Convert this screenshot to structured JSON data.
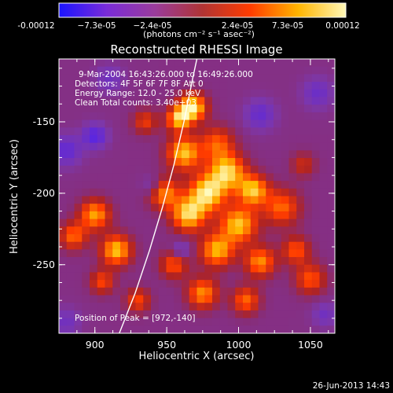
{
  "colorbar": {
    "ticks": [
      "-0.00012",
      "−7.3e-05",
      "−2.4e-05",
      "2.4e-05",
      "7.3e-05",
      "0.00012"
    ],
    "unit_label": "(photons cm⁻² s⁻¹ asec⁻²)",
    "range": [
      -0.00012,
      0.00012
    ],
    "colors": [
      "#1a14ff",
      "#7a2cd8",
      "#9a3c9c",
      "#b03434",
      "#ff3c00",
      "#ffb400",
      "#fff8b8"
    ]
  },
  "chart_data": {
    "type": "heatmap",
    "title": "Reconstructed RHESSI Image",
    "xlabel": "Heliocentric X (arcsec)",
    "ylabel": "Heliocentric Y (arcsec)",
    "xlim": [
      875,
      1067
    ],
    "ylim": [
      -298,
      -106
    ],
    "x_ticks": [
      "900",
      "950",
      "1000",
      "1050"
    ],
    "y_ticks": [
      "-150",
      "-200",
      "-250"
    ],
    "x_tick_values": [
      900,
      950,
      1000,
      1050
    ],
    "y_tick_values": [
      -150,
      -200,
      -250
    ],
    "grid": false,
    "peak": [
      972,
      -140
    ],
    "info_lines": [
      "9-Mar-2004 16:43:26.000 to 16:49:26.000",
      "Detectors: 4F 5F 6F 7F 8F  Att 0",
      "Energy Range: 12.0 - 25.0 keV",
      "Clean    Total counts: 3.40e+03"
    ],
    "peak_label": "Position of Peak = [972,-140]",
    "limb_arc": [
      [
        917,
        -298
      ],
      [
        928,
        -270
      ],
      [
        938,
        -240
      ],
      [
        947,
        -210
      ],
      [
        955,
        -180
      ],
      [
        962,
        -150
      ],
      [
        968,
        -120
      ],
      [
        971,
        -106
      ]
    ],
    "hotspots": [
      {
        "x": 968,
        "y": -140,
        "r": 9,
        "v": 1.0
      },
      {
        "x": 958,
        "y": -148,
        "r": 8,
        "v": 0.8
      },
      {
        "x": 985,
        "y": -165,
        "r": 11,
        "v": 0.55
      },
      {
        "x": 962,
        "y": -172,
        "r": 11,
        "v": 0.85
      },
      {
        "x": 992,
        "y": -185,
        "r": 12,
        "v": 0.9
      },
      {
        "x": 978,
        "y": -200,
        "r": 12,
        "v": 0.95
      },
      {
        "x": 1010,
        "y": -198,
        "r": 10,
        "v": 0.85
      },
      {
        "x": 948,
        "y": -200,
        "r": 10,
        "v": 0.7
      },
      {
        "x": 965,
        "y": -215,
        "r": 11,
        "v": 0.9
      },
      {
        "x": 1000,
        "y": -222,
        "r": 12,
        "v": 0.85
      },
      {
        "x": 1030,
        "y": -210,
        "r": 12,
        "v": 0.6
      },
      {
        "x": 985,
        "y": -240,
        "r": 11,
        "v": 0.8
      },
      {
        "x": 1015,
        "y": -248,
        "r": 10,
        "v": 0.7
      },
      {
        "x": 1040,
        "y": -240,
        "r": 9,
        "v": 0.55
      },
      {
        "x": 955,
        "y": -250,
        "r": 9,
        "v": 0.55
      },
      {
        "x": 900,
        "y": -215,
        "r": 10,
        "v": 0.75
      },
      {
        "x": 885,
        "y": -230,
        "r": 9,
        "v": 0.6
      },
      {
        "x": 915,
        "y": -240,
        "r": 10,
        "v": 0.85
      },
      {
        "x": 905,
        "y": -262,
        "r": 8,
        "v": 0.5
      },
      {
        "x": 930,
        "y": -275,
        "r": 8,
        "v": 0.5
      },
      {
        "x": 975,
        "y": -270,
        "r": 10,
        "v": 0.7
      },
      {
        "x": 1005,
        "y": -275,
        "r": 9,
        "v": 0.6
      },
      {
        "x": 1050,
        "y": -260,
        "r": 10,
        "v": 0.55
      },
      {
        "x": 1045,
        "y": -180,
        "r": 8,
        "v": 0.35
      },
      {
        "x": 935,
        "y": -150,
        "r": 8,
        "v": 0.45
      },
      {
        "x": 910,
        "y": -120,
        "r": 9,
        "v": -0.3
      },
      {
        "x": 880,
        "y": -170,
        "r": 10,
        "v": -0.45
      },
      {
        "x": 900,
        "y": -160,
        "r": 8,
        "v": -0.55
      },
      {
        "x": 1015,
        "y": -145,
        "r": 10,
        "v": -0.4
      },
      {
        "x": 1055,
        "y": -130,
        "r": 10,
        "v": -0.35
      },
      {
        "x": 940,
        "y": -195,
        "r": 7,
        "v": -0.3
      },
      {
        "x": 960,
        "y": -240,
        "r": 6,
        "v": -0.35
      },
      {
        "x": 1060,
        "y": -285,
        "r": 8,
        "v": -0.3
      },
      {
        "x": 880,
        "y": -290,
        "r": 9,
        "v": -0.3
      }
    ]
  },
  "footer": {
    "timestamp": "26-Jun-2013 14:43"
  }
}
